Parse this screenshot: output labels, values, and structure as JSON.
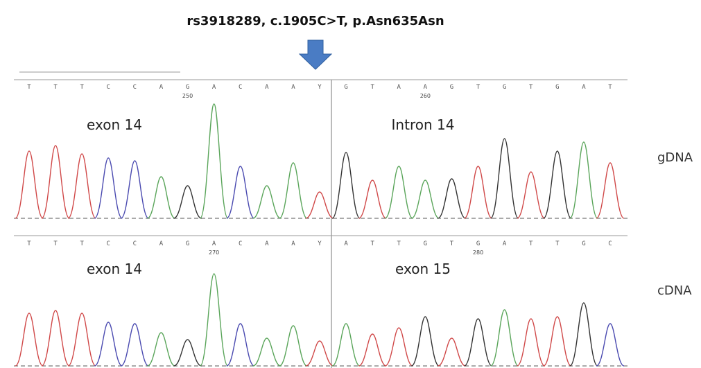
{
  "title": "rs3918289, c.1905C>T, p.Asn635Asn",
  "traces": [
    {
      "sample": "gDNA",
      "bases": [
        "T",
        "T",
        "T",
        "C",
        "C",
        "A",
        "G",
        "A",
        "C",
        "A",
        "A",
        "Y",
        "G",
        "T",
        "A",
        "A",
        "G",
        "T",
        "G",
        "T",
        "G",
        "A",
        "T"
      ],
      "positions": [
        {
          "label": "250",
          "base_index": 6
        },
        {
          "label": "260",
          "base_index": 15
        }
      ],
      "regions": [
        "exon 14",
        "Intron 14"
      ]
    },
    {
      "sample": "cDNA",
      "bases": [
        "T",
        "T",
        "T",
        "C",
        "C",
        "A",
        "G",
        "A",
        "C",
        "A",
        "A",
        "Y",
        "A",
        "T",
        "T",
        "G",
        "T",
        "G",
        "A",
        "T",
        "T",
        "G",
        "C"
      ],
      "positions": [
        {
          "label": "270",
          "base_index": 7
        },
        {
          "label": "280",
          "base_index": 17
        }
      ],
      "regions": [
        "exon 14",
        "exon 15"
      ]
    }
  ]
}
